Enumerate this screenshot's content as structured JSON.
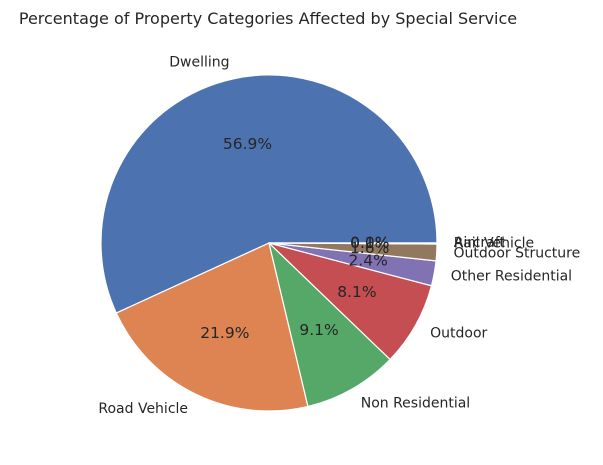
{
  "chart_data": {
    "type": "pie",
    "title": "Percentage of Property Categories Affected by Special Service",
    "start_angle_deg": 0,
    "direction": "counterclockwise",
    "slices": [
      {
        "label": "Dwelling",
        "value": 56.9,
        "pct": "56.9%",
        "color": "#4c72b0"
      },
      {
        "label": "Road Vehicle",
        "value": 21.9,
        "pct": "21.9%",
        "color": "#dd8452"
      },
      {
        "label": "Non Residential",
        "value": 9.1,
        "pct": "9.1%",
        "color": "#55a868"
      },
      {
        "label": "Outdoor",
        "value": 8.1,
        "pct": "8.1%",
        "color": "#c44e52"
      },
      {
        "label": "Other Residential",
        "value": 2.4,
        "pct": "2.4%",
        "color": "#8172b3"
      },
      {
        "label": "Outdoor Structure",
        "value": 1.6,
        "pct": "1.6%",
        "color": "#937860"
      },
      {
        "label": "Rail Vehicle",
        "value": 0.1,
        "pct": "0.1%",
        "color": "#da8bc3"
      },
      {
        "label": "Aircraft",
        "value": 0.0,
        "pct": "0.0%",
        "color": "#8c8c8c"
      }
    ]
  }
}
